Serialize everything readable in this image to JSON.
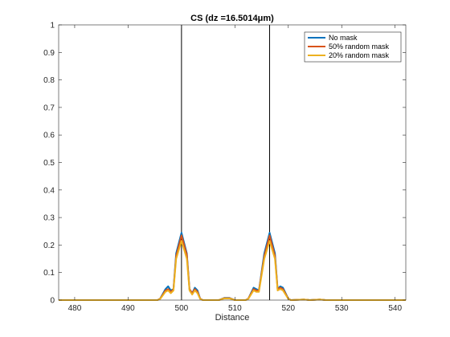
{
  "chart_data": {
    "type": "line",
    "title": "CS (dz =16.5014μm)",
    "xlabel": "Distance",
    "ylabel": "",
    "xlim": [
      477,
      542
    ],
    "ylim": [
      0,
      1
    ],
    "xticks": [
      480,
      490,
      500,
      510,
      520,
      530,
      540
    ],
    "yticks": [
      0,
      0.1,
      0.2,
      0.3,
      0.4,
      0.5,
      0.6,
      0.7,
      0.8,
      0.9,
      1
    ],
    "grid": false,
    "legend_position": "top-right",
    "vertical_lines": [
      500,
      516.5
    ],
    "series": [
      {
        "name": "No mask",
        "color": "#0072BD",
        "points": [
          [
            477,
            0
          ],
          [
            495.5,
            0
          ],
          [
            496,
            0.005
          ],
          [
            497,
            0.04
          ],
          [
            497.5,
            0.05
          ],
          [
            498,
            0.035
          ],
          [
            498.5,
            0.04
          ],
          [
            499,
            0.17
          ],
          [
            500,
            0.245
          ],
          [
            501,
            0.17
          ],
          [
            501.5,
            0.04
          ],
          [
            502,
            0.025
          ],
          [
            502.5,
            0.045
          ],
          [
            503,
            0.035
          ],
          [
            503.5,
            0.005
          ],
          [
            504,
            0
          ],
          [
            507,
            0
          ],
          [
            508,
            0.008
          ],
          [
            509,
            0.008
          ],
          [
            510,
            0
          ],
          [
            512,
            0
          ],
          [
            512.5,
            0.005
          ],
          [
            513.5,
            0.045
          ],
          [
            514,
            0.04
          ],
          [
            514.5,
            0.035
          ],
          [
            515.5,
            0.17
          ],
          [
            516.5,
            0.245
          ],
          [
            517.5,
            0.17
          ],
          [
            518,
            0.04
          ],
          [
            518.5,
            0.05
          ],
          [
            519,
            0.045
          ],
          [
            520,
            0.005
          ],
          [
            520.5,
            0
          ],
          [
            523,
            0.002
          ],
          [
            524,
            0
          ],
          [
            526,
            0.002
          ],
          [
            527,
            0
          ],
          [
            542,
            0
          ]
        ]
      },
      {
        "name": "50% random mask",
        "color": "#D95319",
        "points": [
          [
            477,
            0
          ],
          [
            495.5,
            0
          ],
          [
            496,
            0.005
          ],
          [
            497,
            0.035
          ],
          [
            497.5,
            0.04
          ],
          [
            498,
            0.03
          ],
          [
            498.5,
            0.04
          ],
          [
            499,
            0.16
          ],
          [
            500,
            0.235
          ],
          [
            501,
            0.165
          ],
          [
            501.5,
            0.04
          ],
          [
            502,
            0.025
          ],
          [
            502.5,
            0.04
          ],
          [
            503,
            0.03
          ],
          [
            503.5,
            0.005
          ],
          [
            504,
            0
          ],
          [
            507,
            0
          ],
          [
            508,
            0.007
          ],
          [
            509,
            0.007
          ],
          [
            510,
            0
          ],
          [
            512,
            0
          ],
          [
            512.5,
            0.005
          ],
          [
            513.5,
            0.04
          ],
          [
            514,
            0.035
          ],
          [
            514.5,
            0.035
          ],
          [
            515.5,
            0.16
          ],
          [
            516.5,
            0.235
          ],
          [
            517.5,
            0.16
          ],
          [
            518,
            0.04
          ],
          [
            518.5,
            0.045
          ],
          [
            519,
            0.04
          ],
          [
            520,
            0.005
          ],
          [
            520.5,
            0
          ],
          [
            523,
            0.002
          ],
          [
            524,
            0
          ],
          [
            526,
            0.002
          ],
          [
            527,
            0
          ],
          [
            542,
            0
          ]
        ]
      },
      {
        "name": "20% random mask",
        "color": "#EDB120",
        "points": [
          [
            477,
            0
          ],
          [
            495.5,
            0
          ],
          [
            496,
            0.004
          ],
          [
            497,
            0.03
          ],
          [
            497.5,
            0.035
          ],
          [
            498,
            0.025
          ],
          [
            498.5,
            0.035
          ],
          [
            499,
            0.15
          ],
          [
            500,
            0.215
          ],
          [
            501,
            0.15
          ],
          [
            501.5,
            0.035
          ],
          [
            502,
            0.02
          ],
          [
            502.5,
            0.035
          ],
          [
            503,
            0.025
          ],
          [
            503.5,
            0.004
          ],
          [
            504,
            0
          ],
          [
            507,
            0
          ],
          [
            508,
            0.006
          ],
          [
            509,
            0.006
          ],
          [
            510,
            0
          ],
          [
            512,
            0
          ],
          [
            512.5,
            0.004
          ],
          [
            513.5,
            0.035
          ],
          [
            514,
            0.03
          ],
          [
            514.5,
            0.03
          ],
          [
            515.5,
            0.15
          ],
          [
            516.5,
            0.215
          ],
          [
            517.5,
            0.15
          ],
          [
            518,
            0.035
          ],
          [
            518.5,
            0.04
          ],
          [
            519,
            0.035
          ],
          [
            520,
            0.004
          ],
          [
            520.5,
            0
          ],
          [
            523,
            0.002
          ],
          [
            524,
            0
          ],
          [
            526,
            0.002
          ],
          [
            527,
            0
          ],
          [
            542,
            0
          ]
        ]
      }
    ]
  }
}
